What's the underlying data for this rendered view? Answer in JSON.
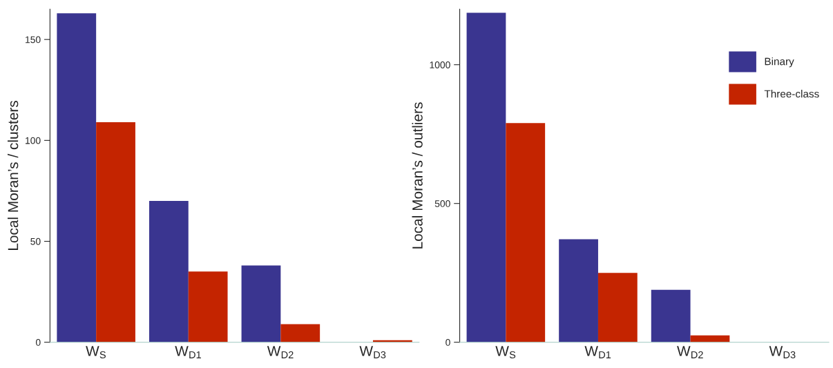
{
  "chart_data": [
    {
      "type": "bar",
      "ylabel": "Local Moran’s / clusters",
      "categories": [
        "W$_{S}$",
        "W$_{D1}$",
        "W$_{D2}$",
        "W$_{D3}$"
      ],
      "series": [
        {
          "color": "#3a3590",
          "values": [
            163,
            70,
            38,
            0
          ]
        },
        {
          "color": "#c42400",
          "values": [
            109,
            35,
            9,
            1
          ]
        }
      ],
      "ylim": [
        0,
        165
      ],
      "yticks": [
        0,
        50,
        100,
        150
      ],
      "grid": false,
      "legend": false
    },
    {
      "type": "bar",
      "ylabel": "Local Moran’s / outliers",
      "categories": [
        "W$_{S}$",
        "W$_{D1}$",
        "W$_{D2}$",
        "W$_{D3}$"
      ],
      "series": [
        {
          "name": "Binary",
          "color": "#3a3590",
          "values": [
            1187,
            371,
            189,
            0
          ]
        },
        {
          "name": "Three-class",
          "color": "#c42400",
          "values": [
            790,
            250,
            25,
            0
          ]
        }
      ],
      "ylim": [
        0,
        1200
      ],
      "yticks": [
        0,
        500,
        1000
      ],
      "grid": false,
      "legend": "top right"
    }
  ]
}
